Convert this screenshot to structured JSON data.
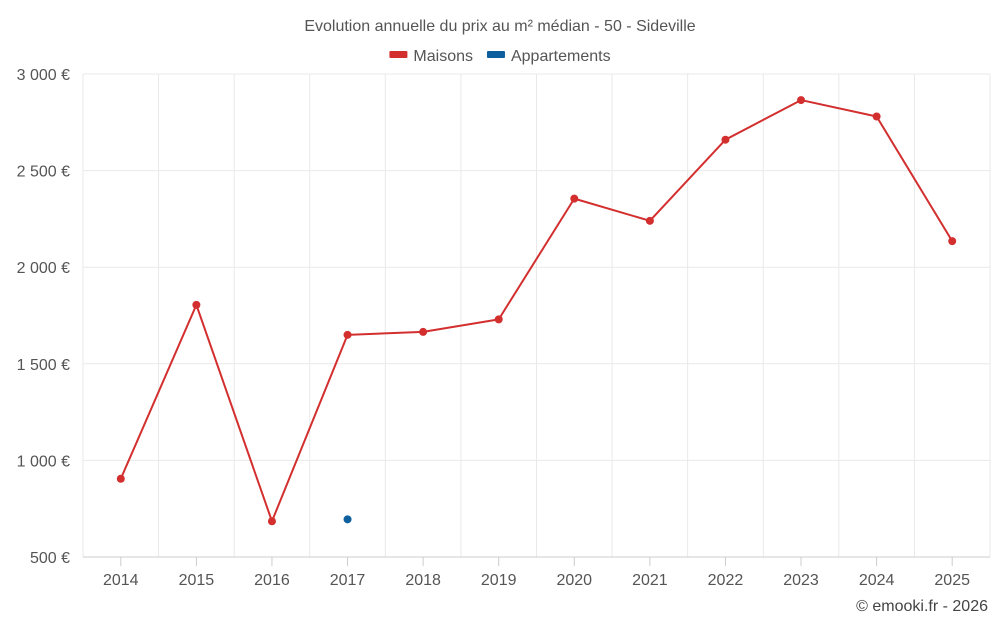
{
  "chart_data": {
    "type": "line",
    "title": "Evolution annuelle du prix au m² médian - 50 - Sideville",
    "categories": [
      "2014",
      "2015",
      "2016",
      "2017",
      "2018",
      "2019",
      "2020",
      "2021",
      "2022",
      "2023",
      "2024",
      "2025"
    ],
    "series": [
      {
        "name": "Maisons",
        "color": "#d32f2f",
        "values": [
          905,
          1805,
          685,
          1650,
          1665,
          1730,
          2355,
          2240,
          2660,
          2865,
          2780,
          2135
        ]
      },
      {
        "name": "Appartements",
        "color": "#0d5f9e",
        "values": [
          null,
          null,
          null,
          695,
          null,
          null,
          null,
          null,
          null,
          null,
          null,
          null
        ]
      }
    ],
    "ylim": [
      500,
      3000
    ],
    "yticks": [
      500,
      1000,
      1500,
      2000,
      2500,
      3000
    ],
    "ytick_labels": [
      "500 €",
      "1 000 €",
      "1 500 €",
      "2 000 €",
      "2 500 €",
      "3 000 €"
    ],
    "grid": true,
    "legend": "top-center"
  },
  "credit": "© emooki.fr - 2026"
}
